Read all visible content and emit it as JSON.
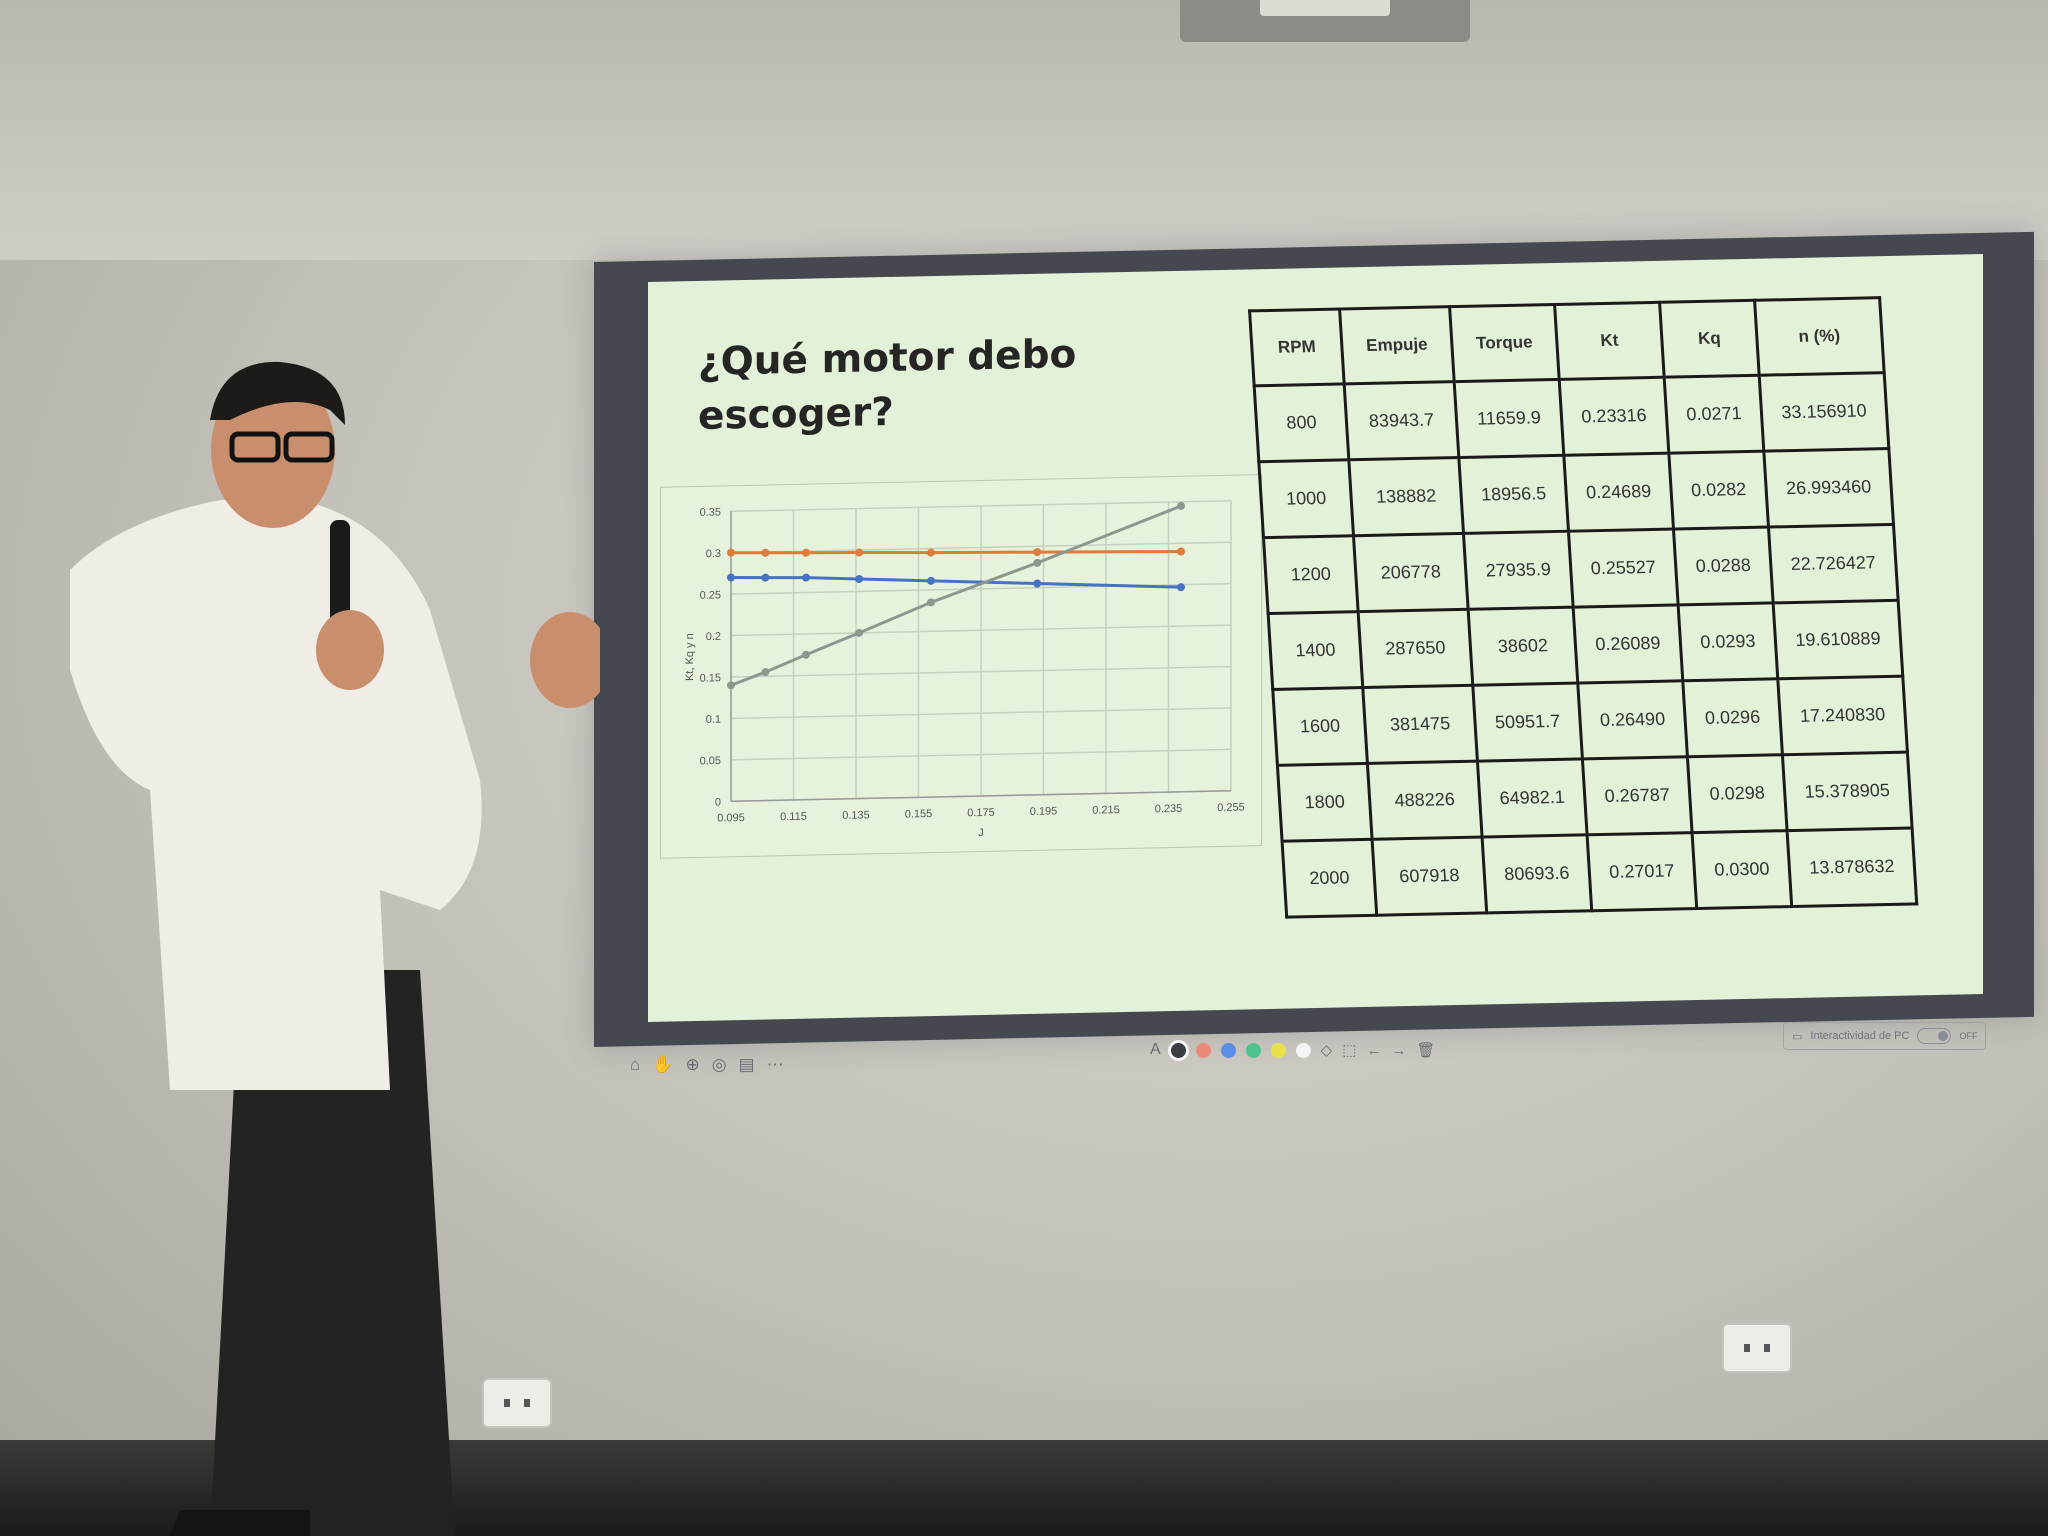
{
  "slide": {
    "title": "¿Qué motor debo escoger?"
  },
  "table": {
    "headers": [
      "RPM",
      "Empuje",
      "Torque",
      "Kt",
      "Kq",
      "n (%)"
    ],
    "rows": [
      [
        "800",
        "83943.7",
        "11659.9",
        "0.23316",
        "0.0271",
        "33.156910"
      ],
      [
        "1000",
        "138882",
        "18956.5",
        "0.24689",
        "0.0282",
        "26.993460"
      ],
      [
        "1200",
        "206778",
        "27935.9",
        "0.25527",
        "0.0288",
        "22.726427"
      ],
      [
        "1400",
        "287650",
        "38602",
        "0.26089",
        "0.0293",
        "19.610889"
      ],
      [
        "1600",
        "381475",
        "50951.7",
        "0.26490",
        "0.0296",
        "17.240830"
      ],
      [
        "1800",
        "488226",
        "64982.1",
        "0.26787",
        "0.0298",
        "15.378905"
      ],
      [
        "2000",
        "607918",
        "80693.6",
        "0.27017",
        "0.0300",
        "13.878632"
      ]
    ]
  },
  "chart_data": {
    "type": "line",
    "xlabel": "J",
    "ylabel": "Kt, Kq y n",
    "xlim": [
      0.095,
      0.255
    ],
    "ylim": [
      0,
      0.35
    ],
    "x_ticks": [
      "0.095",
      "0.115",
      "0.135",
      "0.155",
      "0.175",
      "0.195",
      "0.215",
      "0.235",
      "0.255"
    ],
    "y_ticks": [
      "0",
      "0.05",
      "0.1",
      "0.15",
      "0.2",
      "0.25",
      "0.3",
      "0.35"
    ],
    "grid": true,
    "series": [
      {
        "color": "#e07b39",
        "x": [
          0.095,
          0.106,
          0.119,
          0.136,
          0.159,
          0.193,
          0.239
        ],
        "y": [
          0.3,
          0.299,
          0.298,
          0.297,
          0.295,
          0.293,
          0.29
        ]
      },
      {
        "color": "#4472c4",
        "x": [
          0.095,
          0.106,
          0.119,
          0.136,
          0.159,
          0.193,
          0.239
        ],
        "y": [
          0.27,
          0.269,
          0.268,
          0.265,
          0.261,
          0.255,
          0.247
        ]
      },
      {
        "color": "#8e9690",
        "x": [
          0.095,
          0.106,
          0.119,
          0.136,
          0.159,
          0.193,
          0.239
        ],
        "y": [
          0.14,
          0.155,
          0.175,
          0.2,
          0.235,
          0.28,
          0.345
        ]
      }
    ]
  },
  "projector_toolbar": {
    "interactivity_label": "Interactividad de PC",
    "toggle_label": "OFF",
    "pen_colors": [
      "#3a3d42",
      "#e8897a",
      "#5b8ee6",
      "#4fc28e",
      "#e8e04a",
      "#f4f4f4"
    ]
  }
}
